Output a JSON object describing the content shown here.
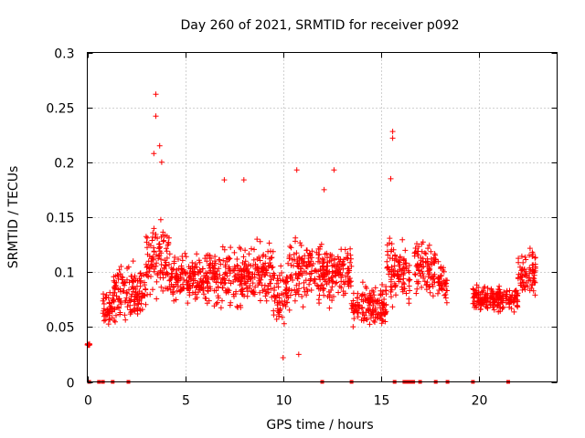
{
  "chart_data": {
    "type": "scatter",
    "title": "Day 260 of 2021, SRMTID for receiver p092",
    "xlabel": "GPS time / hours",
    "ylabel": "SRMTID / TECUs",
    "xlim": [
      0,
      24
    ],
    "ylim": [
      0,
      0.3
    ],
    "x_ticks": [
      0,
      5,
      10,
      15,
      20
    ],
    "x_tick_labels": [
      "0",
      "5",
      "10",
      "15",
      "20"
    ],
    "y_ticks": [
      0,
      0.05,
      0.1,
      0.15,
      0.2,
      0.25,
      0.3
    ],
    "y_tick_labels": [
      "0",
      "0.05",
      "0.1",
      "0.15",
      "0.2",
      "0.25",
      "0.3"
    ],
    "grid": true,
    "marker": "plus",
    "color": "#ff0000",
    "series": [
      {
        "name": "SRMTID p092",
        "segments": [
          {
            "start": 0.0,
            "end": 0.12,
            "base": 0.034,
            "spread": 0.003
          },
          {
            "start": 0.8,
            "end": 1.3,
            "base": 0.068,
            "spread": 0.02
          },
          {
            "start": 1.3,
            "end": 2.0,
            "base": 0.082,
            "spread": 0.035
          },
          {
            "start": 2.0,
            "end": 3.0,
            "base": 0.082,
            "spread": 0.035
          },
          {
            "start": 3.0,
            "end": 4.2,
            "base": 0.11,
            "spread": 0.045
          },
          {
            "start": 4.2,
            "end": 6.0,
            "base": 0.095,
            "spread": 0.03
          },
          {
            "start": 6.0,
            "end": 8.0,
            "base": 0.095,
            "spread": 0.035
          },
          {
            "start": 8.0,
            "end": 9.5,
            "base": 0.1,
            "spread": 0.035
          },
          {
            "start": 9.5,
            "end": 10.3,
            "base": 0.08,
            "spread": 0.04
          },
          {
            "start": 10.3,
            "end": 12.5,
            "base": 0.1,
            "spread": 0.04
          },
          {
            "start": 12.5,
            "end": 13.5,
            "base": 0.1,
            "spread": 0.035
          },
          {
            "start": 13.5,
            "end": 15.3,
            "base": 0.07,
            "spread": 0.025
          },
          {
            "start": 15.3,
            "end": 16.5,
            "base": 0.1,
            "spread": 0.04
          },
          {
            "start": 16.7,
            "end": 17.8,
            "base": 0.105,
            "spread": 0.035
          },
          {
            "start": 17.9,
            "end": 18.4,
            "base": 0.09,
            "spread": 0.025
          },
          {
            "start": 19.7,
            "end": 22.0,
            "base": 0.075,
            "spread": 0.015
          },
          {
            "start": 22.0,
            "end": 22.9,
            "base": 0.1,
            "spread": 0.03
          }
        ],
        "peaks": [
          {
            "x": 3.5,
            "y": 0.262
          },
          {
            "x": 3.5,
            "y": 0.242
          },
          {
            "x": 3.7,
            "y": 0.215
          },
          {
            "x": 3.8,
            "y": 0.2
          },
          {
            "x": 3.4,
            "y": 0.208
          },
          {
            "x": 7.0,
            "y": 0.184
          },
          {
            "x": 8.0,
            "y": 0.184
          },
          {
            "x": 10.7,
            "y": 0.193
          },
          {
            "x": 12.6,
            "y": 0.193
          },
          {
            "x": 15.6,
            "y": 0.228
          },
          {
            "x": 15.6,
            "y": 0.222
          },
          {
            "x": 15.5,
            "y": 0.185
          },
          {
            "x": 12.1,
            "y": 0.175
          },
          {
            "x": 10.0,
            "y": 0.022
          },
          {
            "x": 10.8,
            "y": 0.025
          }
        ],
        "zero_values_at": [
          0.1,
          0.6,
          0.8,
          1.3,
          2.1,
          12.0,
          13.5,
          15.7,
          16.2,
          16.35,
          16.5,
          16.65,
          17.0,
          17.8,
          18.4,
          19.7,
          21.5
        ]
      }
    ]
  }
}
